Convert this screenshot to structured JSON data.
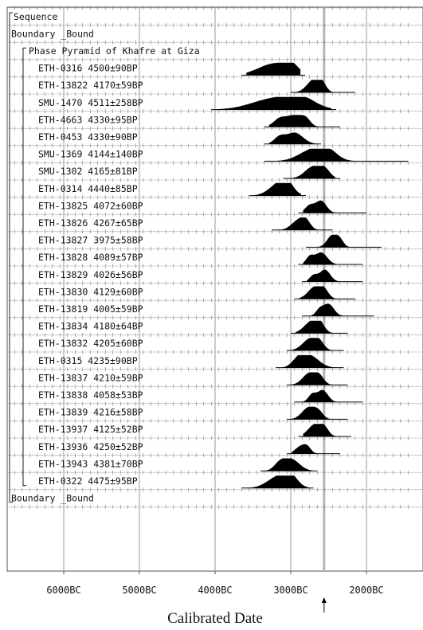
{
  "chart_data": {
    "type": "oxcal-multiplot",
    "xlabel": "Calibrated Date",
    "x_ticks": [
      {
        "label": "6000BC",
        "year": -6000
      },
      {
        "label": "5000BC",
        "year": -5000
      },
      {
        "label": "4000BC",
        "year": -4000
      },
      {
        "label": "3000BC",
        "year": -3000
      },
      {
        "label": "2000BC",
        "year": -2000
      }
    ],
    "xlim": [
      -6850,
      -1450
    ],
    "grid_minor_step_years": 100,
    "reference_line_year": -2560,
    "headers": {
      "sequence": "Sequence",
      "boundary_top": "Boundary _Bound",
      "phase": "Phase Pyramid of Khafre at Giza",
      "boundary_bottom": "Boundary _Bound"
    },
    "samples": [
      {
        "label": "ETH-0316  4500±90BP",
        "lab_code": "ETH-0316",
        "bp": 4500,
        "err": 90,
        "range": [
          -3650,
          -2810
        ],
        "peaks": [
          [
            -3200,
            1.0,
            220
          ],
          [
            -3000,
            0.55,
            80
          ]
        ]
      },
      {
        "label": "ETH-13822  4170±59BP",
        "lab_code": "ETH-13822",
        "bp": 4170,
        "err": 59,
        "range": [
          -3000,
          -2150
        ],
        "peaks": [
          [
            -2700,
            1.0,
            90
          ],
          [
            -2600,
            0.7,
            60
          ]
        ]
      },
      {
        "label": "SMU-1470  4511±258BP",
        "lab_code": "SMU-1470",
        "bp": 4511,
        "err": 258,
        "range": [
          -4050,
          -2400
        ],
        "peaks": [
          [
            -3200,
            0.95,
            300
          ],
          [
            -2850,
            0.7,
            180
          ]
        ]
      },
      {
        "label": "ETH-4663  4330±95BP",
        "lab_code": "ETH-4663",
        "bp": 4330,
        "err": 95,
        "range": [
          -3350,
          -2350
        ],
        "peaks": [
          [
            -2950,
            0.95,
            110
          ],
          [
            -3150,
            0.6,
            80
          ],
          [
            -2800,
            0.5,
            60
          ]
        ]
      },
      {
        "label": "ETH-0453  4330±90BP",
        "lab_code": "ETH-0453",
        "bp": 4330,
        "err": 90,
        "range": [
          -3350,
          -2600
        ],
        "peaks": [
          [
            -2950,
            0.95,
            110
          ],
          [
            -3150,
            0.55,
            70
          ]
        ]
      },
      {
        "label": "SMU-1369  4144±140BP",
        "lab_code": "SMU-1369",
        "bp": 4144,
        "err": 140,
        "range": [
          -3350,
          -1450
        ],
        "peaks": [
          [
            -2700,
            1.0,
            180
          ],
          [
            -2500,
            0.6,
            120
          ]
        ]
      },
      {
        "label": "SMU-1302  4165±81BP",
        "lab_code": "SMU-1302",
        "bp": 4165,
        "err": 81,
        "range": [
          -3100,
          -2350
        ],
        "peaks": [
          [
            -2700,
            1.0,
            110
          ],
          [
            -2550,
            0.6,
            70
          ]
        ]
      },
      {
        "label": "ETH-0314  4440±85BP",
        "lab_code": "ETH-0314",
        "bp": 4440,
        "err": 85,
        "range": [
          -3550,
          -2800
        ],
        "peaks": [
          [
            -3150,
            1.0,
            130
          ],
          [
            -3050,
            0.7,
            80
          ]
        ]
      },
      {
        "label": "ETH-13825  4072±60BP",
        "lab_code": "ETH-13825",
        "bp": 4072,
        "err": 60,
        "range": [
          -2900,
          -2000
        ],
        "peaks": [
          [
            -2600,
            1.0,
            70
          ],
          [
            -2750,
            0.6,
            60
          ]
        ]
      },
      {
        "label": "ETH-13826  4267±65BP",
        "lab_code": "ETH-13826",
        "bp": 4267,
        "err": 65,
        "range": [
          -3250,
          -2450
        ],
        "peaks": [
          [
            -2900,
            0.8,
            90
          ],
          [
            -2800,
            0.6,
            60
          ]
        ]
      },
      {
        "label": "ETH-13827  3975±58BP",
        "lab_code": "ETH-13827",
        "bp": 3975,
        "err": 58,
        "range": [
          -2800,
          -1800
        ],
        "peaks": [
          [
            -2450,
            1.0,
            70
          ],
          [
            -2350,
            0.5,
            50
          ]
        ]
      },
      {
        "label": "ETH-13828  4089±57BP",
        "lab_code": "ETH-13828",
        "bp": 4089,
        "err": 57,
        "range": [
          -2900,
          -2050
        ],
        "peaks": [
          [
            -2600,
            1.0,
            80
          ],
          [
            -2750,
            0.6,
            50
          ]
        ]
      },
      {
        "label": "ETH-13829  4026±56BP",
        "lab_code": "ETH-13829",
        "bp": 4026,
        "err": 56,
        "range": [
          -2850,
          -2050
        ],
        "peaks": [
          [
            -2550,
            1.0,
            70
          ],
          [
            -2700,
            0.5,
            50
          ]
        ]
      },
      {
        "label": "ETH-13830  4129±60BP",
        "lab_code": "ETH-13830",
        "bp": 4129,
        "err": 60,
        "range": [
          -2950,
          -2150
        ],
        "peaks": [
          [
            -2680,
            1.0,
            90
          ],
          [
            -2560,
            0.6,
            60
          ]
        ]
      },
      {
        "label": "ETH-13819  4005±59BP",
        "lab_code": "ETH-13819",
        "bp": 4005,
        "err": 59,
        "range": [
          -2850,
          -1900
        ],
        "peaks": [
          [
            -2500,
            1.0,
            70
          ],
          [
            -2620,
            0.5,
            50
          ]
        ]
      },
      {
        "label": "ETH-13834  4180±64BP",
        "lab_code": "ETH-13834",
        "bp": 4180,
        "err": 64,
        "range": [
          -3000,
          -2250
        ],
        "peaks": [
          [
            -2720,
            1.0,
            100
          ],
          [
            -2620,
            0.6,
            60
          ]
        ]
      },
      {
        "label": "ETH-13832  4205±60BP",
        "lab_code": "ETH-13832",
        "bp": 4205,
        "err": 60,
        "range": [
          -3050,
          -2300
        ],
        "peaks": [
          [
            -2740,
            1.0,
            100
          ],
          [
            -2620,
            0.5,
            60
          ]
        ]
      },
      {
        "label": "ETH-0315  4235±90BP",
        "lab_code": "ETH-0315",
        "bp": 4235,
        "err": 90,
        "range": [
          -3200,
          -2300
        ],
        "peaks": [
          [
            -2750,
            1.0,
            120
          ],
          [
            -2900,
            0.6,
            80
          ]
        ]
      },
      {
        "label": "ETH-13837  4210±59BP",
        "lab_code": "ETH-13837",
        "bp": 4210,
        "err": 59,
        "range": [
          -3050,
          -2250
        ],
        "peaks": [
          [
            -2750,
            1.0,
            90
          ],
          [
            -2620,
            0.6,
            60
          ]
        ]
      },
      {
        "label": "ETH-13838  4058±53BP",
        "lab_code": "ETH-13838",
        "bp": 4058,
        "err": 53,
        "range": [
          -2950,
          -2050
        ],
        "peaks": [
          [
            -2580,
            1.0,
            70
          ],
          [
            -2720,
            0.6,
            50
          ]
        ]
      },
      {
        "label": "ETH-13839  4216±58BP",
        "lab_code": "ETH-13839",
        "bp": 4216,
        "err": 58,
        "range": [
          -3050,
          -2250
        ],
        "peaks": [
          [
            -2760,
            1.0,
            90
          ],
          [
            -2630,
            0.5,
            60
          ]
        ]
      },
      {
        "label": "ETH-13937  4125±52BP",
        "lab_code": "ETH-13937",
        "bp": 4125,
        "err": 52,
        "range": [
          -2900,
          -2200
        ],
        "peaks": [
          [
            -2680,
            1.0,
            90
          ],
          [
            -2560,
            0.6,
            60
          ]
        ]
      },
      {
        "label": "ETH-13936  4250±52BP",
        "lab_code": "ETH-13936",
        "bp": 4250,
        "err": 52,
        "range": [
          -3050,
          -2350
        ],
        "peaks": [
          [
            -2870,
            0.6,
            70
          ],
          [
            -2780,
            0.45,
            50
          ]
        ]
      },
      {
        "label": "ETH-13943  4381±70BP",
        "lab_code": "ETH-13943",
        "bp": 4381,
        "err": 70,
        "range": [
          -3400,
          -2650
        ],
        "peaks": [
          [
            -3000,
            1.0,
            110
          ],
          [
            -3150,
            0.5,
            70
          ]
        ]
      },
      {
        "label": "ETH-0322  4475±95BP",
        "lab_code": "ETH-0322",
        "bp": 4475,
        "err": 95,
        "range": [
          -3650,
          -2700
        ],
        "peaks": [
          [
            -3150,
            1.0,
            150
          ],
          [
            -3000,
            0.7,
            90
          ]
        ]
      }
    ]
  }
}
